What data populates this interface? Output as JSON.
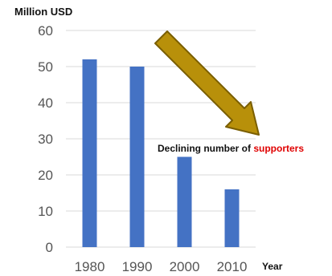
{
  "chart_data": {
    "type": "bar",
    "ylabel": "Million USD",
    "xlabel": "Year",
    "categories": [
      "1980",
      "1990",
      "2000",
      "2010"
    ],
    "values": [
      52,
      50,
      25,
      16
    ],
    "ylim": [
      0,
      60
    ],
    "yticks": [
      "0",
      "10",
      "20",
      "30",
      "40",
      "50",
      "60"
    ],
    "grid": true,
    "annotation": {
      "text_main": "Declining number of ",
      "text_highlight": "supporters",
      "arrow_icon": "down-right-arrow-icon"
    },
    "colors": {
      "bar": "#4472C4",
      "grid": "#d9d9d9",
      "arrow_fill": "#B8900A",
      "arrow_stroke": "#7A5E00",
      "annotation": "#111111",
      "highlight": "#E00000"
    }
  }
}
